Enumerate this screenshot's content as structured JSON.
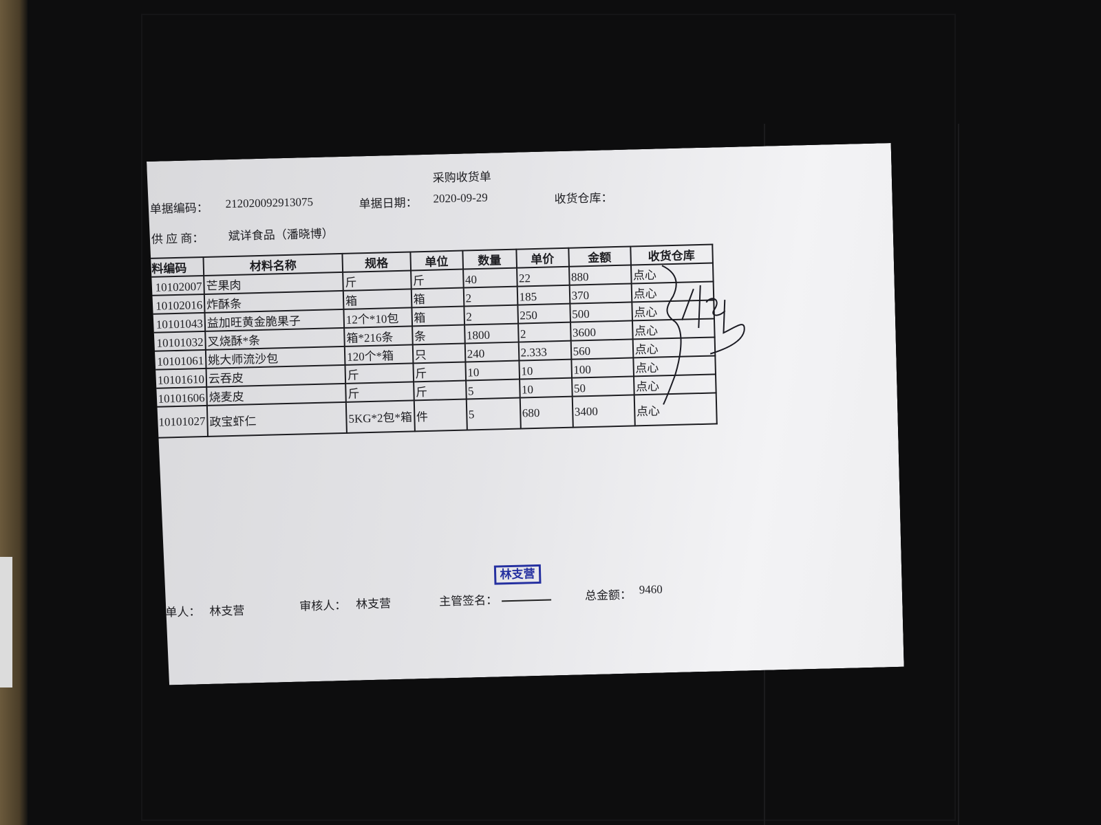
{
  "document": {
    "title": "采购收货单",
    "doc_no_label": "单据编码：",
    "doc_no": "212020092913075",
    "date_label": "单据日期：",
    "date": "2020-09-29",
    "warehouse_label": "收货仓库：",
    "supplier_label": "供 应 商：",
    "supplier": "斌详食品（潘晓博）"
  },
  "table": {
    "headers": [
      "料编码",
      "材料名称",
      "规格",
      "单位",
      "数量",
      "单价",
      "金额",
      "收货仓库"
    ],
    "rows": [
      [
        "10102007",
        "芒果肉",
        "斤",
        "斤",
        "40",
        "22",
        "880",
        "点心"
      ],
      [
        "10102016",
        "炸酥条",
        "箱",
        "箱",
        "2",
        "185",
        "370",
        "点心"
      ],
      [
        "10101043",
        "益加旺黄金脆果子",
        "12个*10包",
        "箱",
        "2",
        "250",
        "500",
        "点心"
      ],
      [
        "10101032",
        "叉烧酥*条",
        "箱*216条",
        "条",
        "1800",
        "2",
        "3600",
        "点心"
      ],
      [
        "10101061",
        "姚大师流沙包",
        "120个*箱",
        "只",
        "240",
        "2.333",
        "560",
        "点心"
      ],
      [
        "10101610",
        "云吞皮",
        "斤",
        "斤",
        "10",
        "10",
        "100",
        "点心"
      ],
      [
        "10101606",
        "烧麦皮",
        "斤",
        "斤",
        "5",
        "10",
        "50",
        "点心"
      ],
      [
        "10101027",
        "政宝虾仁",
        "5KG*2包*箱",
        "件",
        "5",
        "680",
        "3400",
        "点心"
      ]
    ]
  },
  "footer": {
    "maker_label": "单人：",
    "maker": "林支营",
    "reviewer_label": "审核人：",
    "reviewer": "林支营",
    "supervisor_label": "主管签名：",
    "total_label": "总金额：",
    "total": "9460"
  },
  "stamp": {
    "text": "林支营",
    "color": "#2530a0"
  }
}
